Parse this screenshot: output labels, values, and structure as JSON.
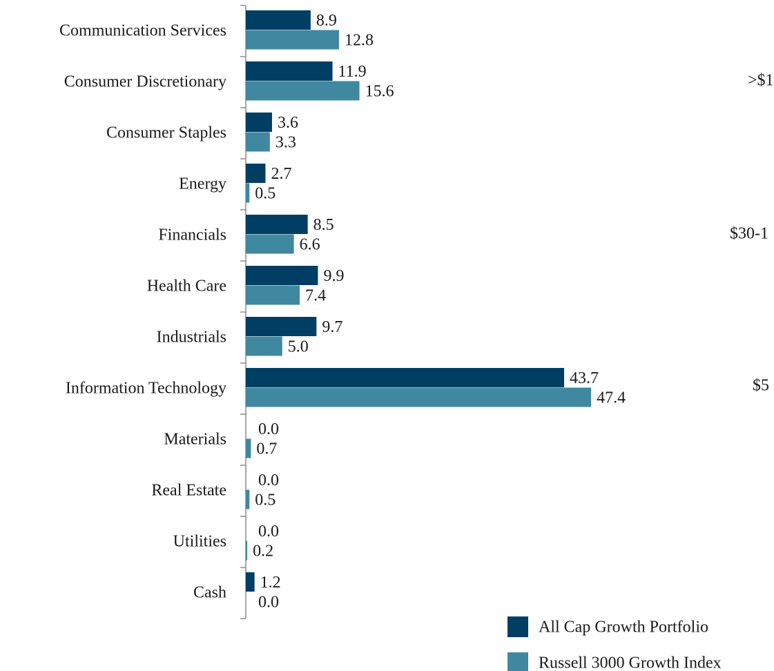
{
  "chart_data": {
    "type": "bar",
    "orientation": "horizontal",
    "categories": [
      "Communication Services",
      "Consumer Discretionary",
      "Consumer Staples",
      "Energy",
      "Financials",
      "Health Care",
      "Industrials",
      "Information Technology",
      "Materials",
      "Real Estate",
      "Utilities",
      "Cash"
    ],
    "series": [
      {
        "name": "All Cap Growth Portfolio",
        "color": "#003f63",
        "values": [
          8.9,
          11.9,
          3.6,
          2.7,
          8.5,
          9.9,
          9.7,
          43.7,
          0,
          0,
          0,
          1.2
        ],
        "value_labels": [
          "8.9",
          "11.9",
          "3.6",
          "2.7",
          "8.5",
          "9.9",
          "9.7",
          "43.7",
          "0.0",
          "0.0",
          "0.0",
          "1.2"
        ]
      },
      {
        "name": "Russell 3000 Growth Index",
        "color": "#3f889f",
        "values": [
          12.8,
          15.6,
          3.3,
          0.5,
          6.6,
          7.4,
          5.0,
          47.4,
          0.7,
          0.5,
          0.2,
          0
        ],
        "value_labels": [
          "12.8",
          "15.6",
          "3.3",
          "0.5",
          "6.6",
          "7.4",
          "5.0",
          "47.4",
          "0.7",
          "0.5",
          "0.2",
          "0.0"
        ]
      }
    ],
    "annotations": [
      ">$1",
      "$30-1",
      "$5"
    ]
  }
}
